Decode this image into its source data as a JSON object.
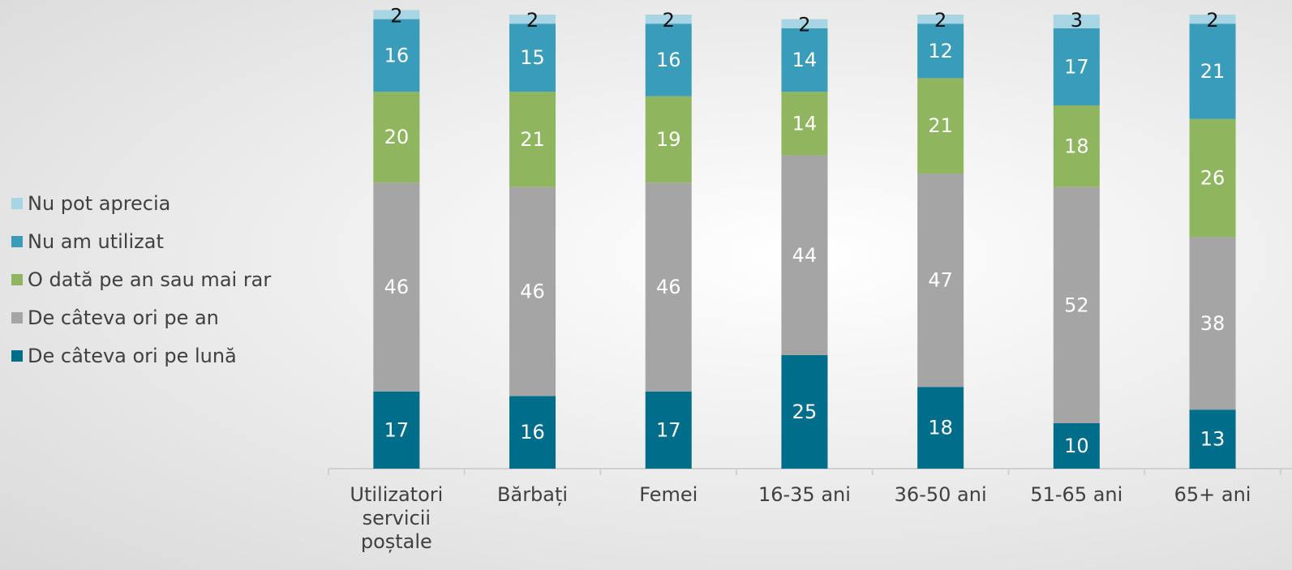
{
  "chart_data": {
    "type": "stacked_bar",
    "categories": [
      "Utilizatori servicii poștale",
      "Bărbați",
      "Femei",
      "16-35 ani",
      "36-50 ani",
      "51-65 ani",
      "65+ ani"
    ],
    "series": [
      {
        "name": "De câteva ori pe lună",
        "color": "#006d8a",
        "values": [
          17,
          16,
          17,
          25,
          18,
          10,
          13
        ]
      },
      {
        "name": "De câteva ori pe an",
        "color": "#a5a5a5",
        "values": [
          46,
          46,
          46,
          44,
          47,
          52,
          38
        ]
      },
      {
        "name": "O dată pe an sau mai rar",
        "color": "#8fb65f",
        "values": [
          20,
          21,
          19,
          14,
          21,
          18,
          26
        ]
      },
      {
        "name": "Nu am utilizat",
        "color": "#399dba",
        "values": [
          16,
          15,
          16,
          14,
          12,
          17,
          21
        ]
      },
      {
        "name": "Nu pot aprecia",
        "color": "#a8d5e4",
        "values": [
          2,
          2,
          2,
          2,
          2,
          3,
          2
        ]
      }
    ]
  }
}
